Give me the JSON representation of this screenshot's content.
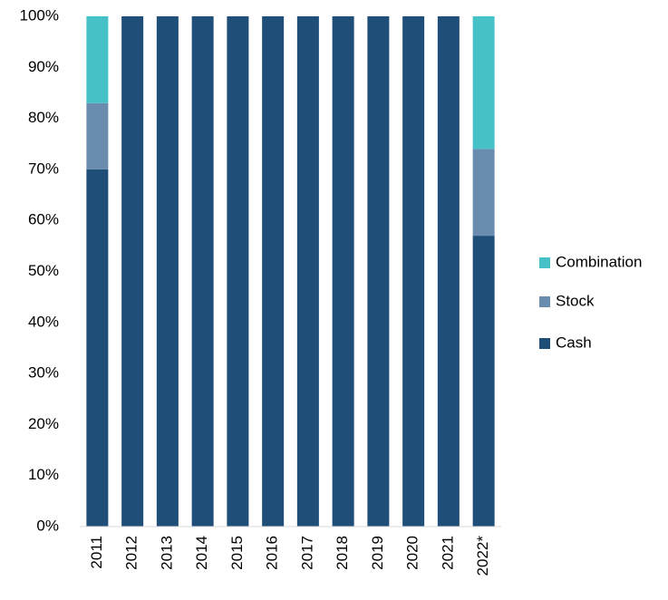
{
  "chart_data": {
    "type": "stacked_bar",
    "categories": [
      "2011",
      "2012",
      "2013",
      "2014",
      "2015",
      "2016",
      "2017",
      "2018",
      "2019",
      "2020",
      "2021",
      "2022*"
    ],
    "series": [
      {
        "name": "Cash",
        "color": "#1f4e79",
        "values": [
          70,
          100,
          100,
          100,
          100,
          100,
          100,
          100,
          100,
          100,
          100,
          57
        ]
      },
      {
        "name": "Stock",
        "color": "#6a8caf",
        "values": [
          13,
          0,
          0,
          0,
          0,
          0,
          0,
          0,
          0,
          0,
          0,
          17
        ]
      },
      {
        "name": "Combination",
        "color": "#45c1c7",
        "values": [
          17,
          0,
          0,
          0,
          0,
          0,
          0,
          0,
          0,
          0,
          0,
          26
        ]
      }
    ],
    "ylim": [
      0,
      100
    ],
    "yticks": [
      {
        "value": 0,
        "label": "0%"
      },
      {
        "value": 10,
        "label": "10%"
      },
      {
        "value": 20,
        "label": "20%"
      },
      {
        "value": 30,
        "label": "30%"
      },
      {
        "value": 40,
        "label": "40%"
      },
      {
        "value": 50,
        "label": "50%"
      },
      {
        "value": 60,
        "label": "60%"
      },
      {
        "value": 70,
        "label": "70%"
      },
      {
        "value": 80,
        "label": "80%"
      },
      {
        "value": 90,
        "label": "90%"
      },
      {
        "value": 100,
        "label": "100%"
      }
    ],
    "legend": "right"
  }
}
